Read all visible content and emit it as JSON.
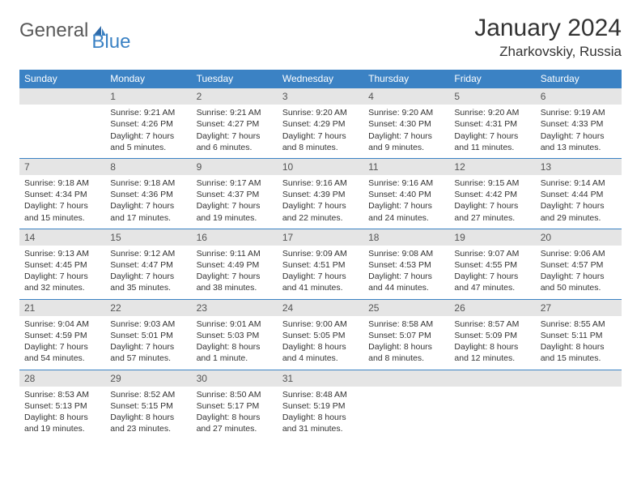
{
  "brand": {
    "word1": "General",
    "word2": "Blue"
  },
  "title": "January 2024",
  "location": "Zharkovskiy, Russia",
  "colors": {
    "header_bg": "#3b82c4",
    "header_fg": "#ffffff",
    "daynum_bg": "#e5e5e5",
    "body_fg": "#333333",
    "page_bg": "#ffffff"
  },
  "typography": {
    "title_fontsize": 30,
    "location_fontsize": 17,
    "dayheader_fontsize": 12,
    "cell_fontsize": 10.5
  },
  "day_headers": [
    "Sunday",
    "Monday",
    "Tuesday",
    "Wednesday",
    "Thursday",
    "Friday",
    "Saturday"
  ],
  "weeks": [
    [
      {
        "num": "",
        "sunrise": "",
        "sunset": "",
        "daylight": ""
      },
      {
        "num": "1",
        "sunrise": "Sunrise: 9:21 AM",
        "sunset": "Sunset: 4:26 PM",
        "daylight": "Daylight: 7 hours and 5 minutes."
      },
      {
        "num": "2",
        "sunrise": "Sunrise: 9:21 AM",
        "sunset": "Sunset: 4:27 PM",
        "daylight": "Daylight: 7 hours and 6 minutes."
      },
      {
        "num": "3",
        "sunrise": "Sunrise: 9:20 AM",
        "sunset": "Sunset: 4:29 PM",
        "daylight": "Daylight: 7 hours and 8 minutes."
      },
      {
        "num": "4",
        "sunrise": "Sunrise: 9:20 AM",
        "sunset": "Sunset: 4:30 PM",
        "daylight": "Daylight: 7 hours and 9 minutes."
      },
      {
        "num": "5",
        "sunrise": "Sunrise: 9:20 AM",
        "sunset": "Sunset: 4:31 PM",
        "daylight": "Daylight: 7 hours and 11 minutes."
      },
      {
        "num": "6",
        "sunrise": "Sunrise: 9:19 AM",
        "sunset": "Sunset: 4:33 PM",
        "daylight": "Daylight: 7 hours and 13 minutes."
      }
    ],
    [
      {
        "num": "7",
        "sunrise": "Sunrise: 9:18 AM",
        "sunset": "Sunset: 4:34 PM",
        "daylight": "Daylight: 7 hours and 15 minutes."
      },
      {
        "num": "8",
        "sunrise": "Sunrise: 9:18 AM",
        "sunset": "Sunset: 4:36 PM",
        "daylight": "Daylight: 7 hours and 17 minutes."
      },
      {
        "num": "9",
        "sunrise": "Sunrise: 9:17 AM",
        "sunset": "Sunset: 4:37 PM",
        "daylight": "Daylight: 7 hours and 19 minutes."
      },
      {
        "num": "10",
        "sunrise": "Sunrise: 9:16 AM",
        "sunset": "Sunset: 4:39 PM",
        "daylight": "Daylight: 7 hours and 22 minutes."
      },
      {
        "num": "11",
        "sunrise": "Sunrise: 9:16 AM",
        "sunset": "Sunset: 4:40 PM",
        "daylight": "Daylight: 7 hours and 24 minutes."
      },
      {
        "num": "12",
        "sunrise": "Sunrise: 9:15 AM",
        "sunset": "Sunset: 4:42 PM",
        "daylight": "Daylight: 7 hours and 27 minutes."
      },
      {
        "num": "13",
        "sunrise": "Sunrise: 9:14 AM",
        "sunset": "Sunset: 4:44 PM",
        "daylight": "Daylight: 7 hours and 29 minutes."
      }
    ],
    [
      {
        "num": "14",
        "sunrise": "Sunrise: 9:13 AM",
        "sunset": "Sunset: 4:45 PM",
        "daylight": "Daylight: 7 hours and 32 minutes."
      },
      {
        "num": "15",
        "sunrise": "Sunrise: 9:12 AM",
        "sunset": "Sunset: 4:47 PM",
        "daylight": "Daylight: 7 hours and 35 minutes."
      },
      {
        "num": "16",
        "sunrise": "Sunrise: 9:11 AM",
        "sunset": "Sunset: 4:49 PM",
        "daylight": "Daylight: 7 hours and 38 minutes."
      },
      {
        "num": "17",
        "sunrise": "Sunrise: 9:09 AM",
        "sunset": "Sunset: 4:51 PM",
        "daylight": "Daylight: 7 hours and 41 minutes."
      },
      {
        "num": "18",
        "sunrise": "Sunrise: 9:08 AM",
        "sunset": "Sunset: 4:53 PM",
        "daylight": "Daylight: 7 hours and 44 minutes."
      },
      {
        "num": "19",
        "sunrise": "Sunrise: 9:07 AM",
        "sunset": "Sunset: 4:55 PM",
        "daylight": "Daylight: 7 hours and 47 minutes."
      },
      {
        "num": "20",
        "sunrise": "Sunrise: 9:06 AM",
        "sunset": "Sunset: 4:57 PM",
        "daylight": "Daylight: 7 hours and 50 minutes."
      }
    ],
    [
      {
        "num": "21",
        "sunrise": "Sunrise: 9:04 AM",
        "sunset": "Sunset: 4:59 PM",
        "daylight": "Daylight: 7 hours and 54 minutes."
      },
      {
        "num": "22",
        "sunrise": "Sunrise: 9:03 AM",
        "sunset": "Sunset: 5:01 PM",
        "daylight": "Daylight: 7 hours and 57 minutes."
      },
      {
        "num": "23",
        "sunrise": "Sunrise: 9:01 AM",
        "sunset": "Sunset: 5:03 PM",
        "daylight": "Daylight: 8 hours and 1 minute."
      },
      {
        "num": "24",
        "sunrise": "Sunrise: 9:00 AM",
        "sunset": "Sunset: 5:05 PM",
        "daylight": "Daylight: 8 hours and 4 minutes."
      },
      {
        "num": "25",
        "sunrise": "Sunrise: 8:58 AM",
        "sunset": "Sunset: 5:07 PM",
        "daylight": "Daylight: 8 hours and 8 minutes."
      },
      {
        "num": "26",
        "sunrise": "Sunrise: 8:57 AM",
        "sunset": "Sunset: 5:09 PM",
        "daylight": "Daylight: 8 hours and 12 minutes."
      },
      {
        "num": "27",
        "sunrise": "Sunrise: 8:55 AM",
        "sunset": "Sunset: 5:11 PM",
        "daylight": "Daylight: 8 hours and 15 minutes."
      }
    ],
    [
      {
        "num": "28",
        "sunrise": "Sunrise: 8:53 AM",
        "sunset": "Sunset: 5:13 PM",
        "daylight": "Daylight: 8 hours and 19 minutes."
      },
      {
        "num": "29",
        "sunrise": "Sunrise: 8:52 AM",
        "sunset": "Sunset: 5:15 PM",
        "daylight": "Daylight: 8 hours and 23 minutes."
      },
      {
        "num": "30",
        "sunrise": "Sunrise: 8:50 AM",
        "sunset": "Sunset: 5:17 PM",
        "daylight": "Daylight: 8 hours and 27 minutes."
      },
      {
        "num": "31",
        "sunrise": "Sunrise: 8:48 AM",
        "sunset": "Sunset: 5:19 PM",
        "daylight": "Daylight: 8 hours and 31 minutes."
      },
      {
        "num": "",
        "sunrise": "",
        "sunset": "",
        "daylight": ""
      },
      {
        "num": "",
        "sunrise": "",
        "sunset": "",
        "daylight": ""
      },
      {
        "num": "",
        "sunrise": "",
        "sunset": "",
        "daylight": ""
      }
    ]
  ]
}
